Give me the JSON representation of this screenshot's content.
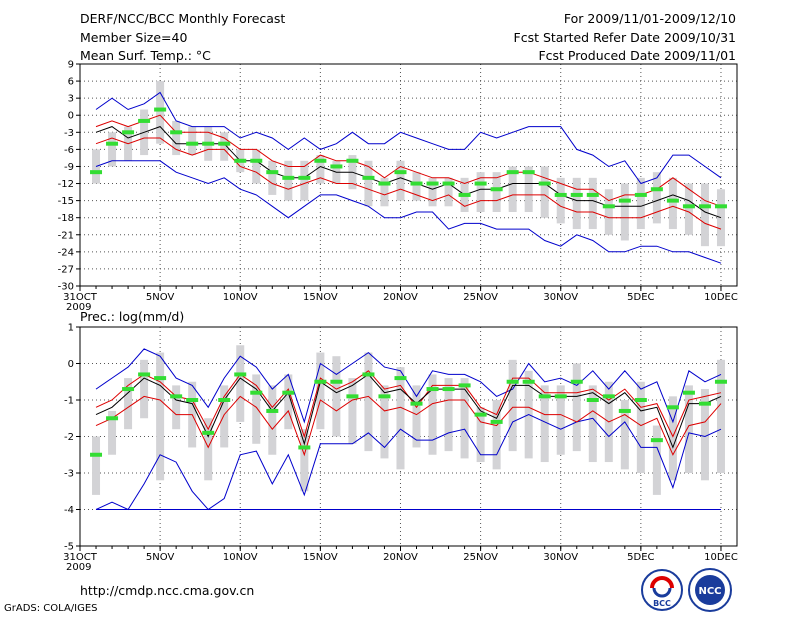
{
  "header": {
    "title": "DERF/NCC/BCC Monthly Forecast",
    "member_size": "Member Size=40",
    "variable": "Mean Surf. Temp.: °C",
    "forecast_period": "For 2009/11/01-2009/12/10",
    "started_refer": "Fcst Started Refer Date 2009/10/31",
    "produced": "Fcst Produced Date 2009/11/01"
  },
  "footer": {
    "url": "http://cmdp.ncc.cma.gov.cn",
    "grads": "GrADS: COLA/IGES",
    "logo_bcc": "BCC",
    "logo_ncc": "NCC"
  },
  "colors": {
    "box": "#d3d3d6",
    "median": "#33dd33",
    "mean": "#000000",
    "spread": "#dd0000",
    "extreme": "#0000cc",
    "grid": "#555555"
  },
  "chart_data": [
    {
      "type": "box-plume",
      "title": "Mean Surf. Temp.: °C",
      "x_tick_labels": [
        "31OCT",
        "5NOV",
        "10NOV",
        "15NOV",
        "20NOV",
        "25NOV",
        "30NOV",
        "5DEC",
        "10DEC"
      ],
      "x_tick_days": [
        0,
        5,
        10,
        15,
        20,
        25,
        30,
        35,
        40
      ],
      "x_year_label": "2009",
      "ylim": [
        -30,
        9
      ],
      "y_ticks": [
        9,
        6,
        3,
        0,
        -3,
        -6,
        -9,
        -12,
        -15,
        -18,
        -21,
        -24,
        -27,
        -30
      ],
      "days": [
        1,
        2,
        3,
        4,
        5,
        6,
        7,
        8,
        9,
        10,
        11,
        12,
        13,
        14,
        15,
        16,
        17,
        18,
        19,
        20,
        21,
        22,
        23,
        24,
        25,
        26,
        27,
        28,
        29,
        30,
        31,
        32,
        33,
        34,
        35,
        36,
        37,
        38,
        39,
        40
      ],
      "series": [
        {
          "name": "max",
          "values": [
            1,
            3,
            1,
            2,
            4,
            -1,
            -2,
            -2,
            -2,
            -4,
            -3,
            -4,
            -6,
            -4,
            -6,
            -5,
            -3,
            -5,
            -5,
            -3,
            -4,
            -5,
            -6,
            -6,
            -3,
            -4,
            -3,
            -2,
            -2,
            -2,
            -6,
            -7,
            -9,
            -8,
            -12,
            -11,
            -7,
            -7,
            -9,
            -11
          ]
        },
        {
          "name": "spread_upper",
          "values": [
            -2,
            -1,
            -2,
            -1,
            0,
            -3,
            -3,
            -3,
            -4,
            -6,
            -6,
            -8,
            -9,
            -9,
            -7,
            -8,
            -8,
            -9,
            -11,
            -9,
            -10,
            -11,
            -11,
            -12,
            -11,
            -11,
            -10,
            -10,
            -11,
            -12,
            -13,
            -13,
            -15,
            -14,
            -14,
            -13,
            -11,
            -13,
            -15,
            -16
          ]
        },
        {
          "name": "mean",
          "values": [
            -3,
            -2,
            -4,
            -3,
            -2,
            -5,
            -5,
            -5,
            -5,
            -8,
            -8,
            -10,
            -11,
            -11,
            -9,
            -10,
            -10,
            -11,
            -12,
            -11,
            -12,
            -13,
            -12,
            -14,
            -13,
            -13,
            -12,
            -12,
            -12,
            -14,
            -15,
            -15,
            -16,
            -16,
            -16,
            -15,
            -14,
            -15,
            -17,
            -18
          ]
        },
        {
          "name": "spread_lower",
          "values": [
            -5,
            -4,
            -5,
            -4,
            -4,
            -6,
            -7,
            -6,
            -6,
            -9,
            -10,
            -12,
            -13,
            -12,
            -11,
            -12,
            -12,
            -13,
            -14,
            -13,
            -14,
            -15,
            -14,
            -16,
            -15,
            -15,
            -14,
            -14,
            -14,
            -16,
            -17,
            -17,
            -18,
            -18,
            -18,
            -17,
            -16,
            -17,
            -19,
            -20
          ]
        },
        {
          "name": "min",
          "values": [
            -9,
            -8,
            -8,
            -8,
            -8,
            -10,
            -11,
            -12,
            -11,
            -13,
            -14,
            -16,
            -18,
            -16,
            -14,
            -14,
            -15,
            -16,
            -18,
            -18,
            -17,
            -17,
            -20,
            -19,
            -19,
            -20,
            -20,
            -20,
            -22,
            -23,
            -21,
            -22,
            -24,
            -24,
            -23,
            -23,
            -24,
            -24,
            -25,
            -26
          ]
        },
        {
          "name": "median",
          "values": [
            -10,
            -5,
            -3,
            -1,
            1,
            -3,
            -5,
            -5,
            -5,
            -8,
            -8,
            -10,
            -11,
            -11,
            -8,
            -9,
            -8,
            -11,
            -12,
            -10,
            -12,
            -12,
            -12,
            -14,
            -12,
            -13,
            -10,
            -10,
            -12,
            -14,
            -14,
            -14,
            -16,
            -15,
            -14,
            -13,
            -15,
            -16,
            -16,
            -16
          ]
        },
        {
          "name": "box_top",
          "values": [
            -6,
            -3,
            -2,
            1,
            6,
            -1,
            -2,
            -2,
            -3,
            -6,
            -6,
            -8,
            -8,
            -8,
            -7,
            -8,
            -7,
            -8,
            -11,
            -8,
            -10,
            -11,
            -11,
            -11,
            -10,
            -10,
            -9,
            -9,
            -9,
            -11,
            -11,
            -11,
            -13,
            -12,
            -11,
            -10,
            -11,
            -12,
            -12,
            -13
          ]
        },
        {
          "name": "box_bottom",
          "values": [
            -12,
            -9,
            -8,
            -7,
            -5,
            -7,
            -7,
            -8,
            -8,
            -10,
            -12,
            -14,
            -15,
            -15,
            -12,
            -12,
            -13,
            -16,
            -16,
            -15,
            -15,
            -16,
            -16,
            -17,
            -17,
            -17,
            -17,
            -17,
            -18,
            -19,
            -20,
            -20,
            -21,
            -22,
            -20,
            -19,
            -20,
            -21,
            -23,
            -23
          ]
        }
      ]
    },
    {
      "type": "box-plume",
      "title": "Prec.: log(mm/d)",
      "x_tick_labels": [
        "31OCT",
        "5NOV",
        "10NOV",
        "15NOV",
        "20NOV",
        "25NOV",
        "30NOV",
        "5DEC",
        "10DEC"
      ],
      "x_tick_days": [
        0,
        5,
        10,
        15,
        20,
        25,
        30,
        35,
        40
      ],
      "x_year_label": "2009",
      "ylim": [
        -5,
        1
      ],
      "y_ticks": [
        1,
        0,
        -1,
        -2,
        -3,
        -4,
        -5
      ],
      "days": [
        1,
        2,
        3,
        4,
        5,
        6,
        7,
        8,
        9,
        10,
        11,
        12,
        13,
        14,
        15,
        16,
        17,
        18,
        19,
        20,
        21,
        22,
        23,
        24,
        25,
        26,
        27,
        28,
        29,
        30,
        31,
        32,
        33,
        34,
        35,
        36,
        37,
        38,
        39,
        40
      ],
      "series": [
        {
          "name": "max",
          "values": [
            -0.7,
            -0.4,
            -0.1,
            0.4,
            0.2,
            -0.4,
            -0.6,
            -1.2,
            -0.4,
            0.2,
            -0.1,
            -0.7,
            -0.3,
            -1.6,
            0.0,
            -0.3,
            0.0,
            0.3,
            -0.1,
            -0.2,
            -0.9,
            -0.2,
            -0.3,
            -0.3,
            -0.5,
            -0.9,
            -0.7,
            0.0,
            -0.5,
            -0.4,
            -0.6,
            -0.2,
            -0.7,
            -0.2,
            -0.7,
            -0.5,
            -1.6,
            -0.2,
            -0.5,
            -0.3
          ]
        },
        {
          "name": "spread_upper",
          "values": [
            -1.2,
            -1.0,
            -0.6,
            -0.3,
            -0.5,
            -0.9,
            -1.0,
            -1.8,
            -0.9,
            -0.3,
            -0.6,
            -1.2,
            -0.7,
            -2.0,
            -0.4,
            -0.7,
            -0.5,
            -0.2,
            -0.7,
            -0.6,
            -1.2,
            -0.6,
            -0.6,
            -0.6,
            -1.2,
            -1.4,
            -0.4,
            -0.4,
            -0.8,
            -0.8,
            -0.8,
            -0.7,
            -1.0,
            -0.7,
            -1.2,
            -1.1,
            -2.0,
            -1.0,
            -0.9,
            -0.8
          ]
        },
        {
          "name": "mean",
          "values": [
            -1.4,
            -1.2,
            -0.8,
            -0.4,
            -0.6,
            -1.0,
            -1.1,
            -2.0,
            -1.0,
            -0.4,
            -0.7,
            -1.3,
            -0.8,
            -2.2,
            -0.5,
            -0.8,
            -0.6,
            -0.3,
            -0.8,
            -0.7,
            -1.1,
            -0.7,
            -0.7,
            -0.7,
            -1.3,
            -1.5,
            -0.6,
            -0.6,
            -0.9,
            -0.9,
            -0.9,
            -0.8,
            -1.1,
            -0.8,
            -1.3,
            -1.2,
            -2.3,
            -1.1,
            -1.1,
            -0.9
          ]
        },
        {
          "name": "spread_lower",
          "values": [
            -1.7,
            -1.5,
            -1.2,
            -0.9,
            -1.0,
            -1.4,
            -1.4,
            -2.3,
            -1.4,
            -0.9,
            -1.2,
            -1.8,
            -1.3,
            -2.5,
            -1.0,
            -1.3,
            -1.0,
            -0.9,
            -1.3,
            -1.2,
            -1.4,
            -1.1,
            -1.0,
            -1.0,
            -1.6,
            -1.7,
            -1.2,
            -1.2,
            -1.4,
            -1.4,
            -1.6,
            -1.3,
            -1.6,
            -1.4,
            -1.7,
            -1.5,
            -2.5,
            -1.7,
            -1.6,
            -1.1
          ]
        },
        {
          "name": "min",
          "values": [
            -4.0,
            -3.8,
            -4.0,
            -3.3,
            -2.5,
            -2.7,
            -3.5,
            -4.0,
            -3.7,
            -2.5,
            -2.4,
            -3.3,
            -2.5,
            -3.6,
            -2.2,
            -2.2,
            -2.2,
            -1.9,
            -2.3,
            -1.8,
            -2.1,
            -2.1,
            -1.9,
            -1.8,
            -2.5,
            -2.5,
            -1.6,
            -1.4,
            -1.6,
            -1.8,
            -1.6,
            -1.5,
            -2.0,
            -1.6,
            -2.3,
            -2.3,
            -3.4,
            -1.9,
            -2.0,
            -1.8
          ]
        },
        {
          "name": "median",
          "values": [
            -2.5,
            -1.5,
            -0.7,
            -0.3,
            -0.4,
            -0.9,
            -1.0,
            -1.9,
            -1.0,
            -0.3,
            -0.8,
            -1.3,
            -0.8,
            -2.3,
            -0.5,
            -0.5,
            -0.9,
            -0.3,
            -0.9,
            -0.4,
            -1.1,
            -0.7,
            -0.7,
            -0.6,
            -1.4,
            -1.6,
            -0.5,
            -0.5,
            -0.9,
            -0.9,
            -0.5,
            -1.0,
            -0.9,
            -1.3,
            -1.0,
            -2.1,
            -1.2,
            -0.8,
            -1.1,
            -0.5
          ]
        },
        {
          "name": "box_top",
          "values": [
            -2.0,
            -1.3,
            -0.4,
            0.1,
            0.3,
            -0.6,
            -0.5,
            -1.5,
            -0.6,
            0.5,
            -0.3,
            -0.6,
            -0.3,
            -1.8,
            0.3,
            0.2,
            -0.4,
            0.3,
            -0.6,
            -0.1,
            -0.6,
            -0.3,
            -0.4,
            -0.4,
            -1.2,
            -1.0,
            0.1,
            -0.2,
            -0.6,
            -0.6,
            0.0,
            -0.6,
            -0.5,
            -1.0,
            -0.5,
            -1.7,
            -0.9,
            -0.6,
            -0.7,
            0.1
          ]
        },
        {
          "name": "box_bottom",
          "values": [
            -3.6,
            -2.5,
            -1.8,
            -1.5,
            -3.2,
            -1.8,
            -2.3,
            -3.2,
            -2.3,
            -1.6,
            -2.2,
            -2.5,
            -1.8,
            -3.5,
            -1.8,
            -2.0,
            -2.2,
            -2.4,
            -2.6,
            -2.9,
            -2.3,
            -2.5,
            -2.4,
            -2.6,
            -2.7,
            -2.9,
            -2.4,
            -2.6,
            -2.7,
            -2.5,
            -2.4,
            -2.7,
            -2.7,
            -2.9,
            -3.0,
            -3.6,
            -3.2,
            -3.0,
            -3.2,
            -3.0
          ]
        },
        {
          "name": "lower_limit",
          "values": [
            -4,
            -4,
            -4,
            -4,
            -4,
            -4,
            -4,
            -4,
            -4,
            -4,
            -4,
            -4,
            -4,
            -4,
            -4,
            -4,
            -4,
            -4,
            -4,
            -4,
            -4,
            -4,
            -4,
            -4,
            -4,
            -4,
            -4,
            -4,
            -4,
            -4,
            -4,
            -4,
            -4,
            -4,
            -4,
            -4,
            -4,
            -4,
            -4,
            -4
          ]
        }
      ]
    }
  ]
}
